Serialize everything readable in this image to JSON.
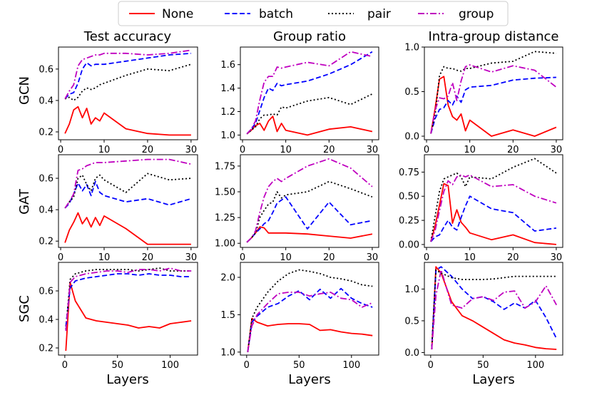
{
  "legend": [
    {
      "name": "None",
      "color": "#ff0000",
      "dash": "solid"
    },
    {
      "name": "batch",
      "color": "#0000ff",
      "dash": "dashed"
    },
    {
      "name": "pair",
      "color": "#000000",
      "dash": "dotted"
    },
    {
      "name": "group",
      "color": "#bf00bf",
      "dash": "dashdot"
    }
  ],
  "columns": [
    "Test accuracy",
    "Group ratio",
    "Intra-group distance"
  ],
  "rows": [
    "GCN",
    "GAT",
    "SGC"
  ],
  "xlabel": "Layers",
  "chart_data": [
    {
      "type": "line",
      "row": "GCN",
      "title": "Test accuracy",
      "xlabel": "",
      "ylabel": "GCN",
      "xlim": [
        -0.5,
        31.5
      ],
      "ylim": [
        0.15,
        0.74
      ],
      "xticks": [
        "0",
        "10",
        "20",
        "30"
      ],
      "yticks": [
        "0.2",
        "0.4",
        "0.6"
      ],
      "x": [
        1,
        2,
        3,
        4,
        5,
        6,
        7,
        8,
        9,
        10,
        15,
        20,
        25,
        30
      ],
      "series": [
        {
          "name": "None",
          "values": [
            0.19,
            0.25,
            0.34,
            0.36,
            0.29,
            0.35,
            0.25,
            0.29,
            0.27,
            0.32,
            0.22,
            0.19,
            0.18,
            0.18
          ]
        },
        {
          "name": "batch",
          "values": [
            0.41,
            0.44,
            0.45,
            0.51,
            0.6,
            0.64,
            0.62,
            0.63,
            0.63,
            0.63,
            0.65,
            0.67,
            0.69,
            0.7
          ]
        },
        {
          "name": "pair",
          "values": [
            0.41,
            0.42,
            0.4,
            0.42,
            0.46,
            0.48,
            0.47,
            0.48,
            0.5,
            0.51,
            0.56,
            0.6,
            0.59,
            0.63
          ]
        },
        {
          "name": "group",
          "values": [
            0.41,
            0.46,
            0.5,
            0.62,
            0.66,
            0.67,
            0.68,
            0.69,
            0.69,
            0.7,
            0.7,
            0.69,
            0.7,
            0.72
          ]
        }
      ]
    },
    {
      "type": "line",
      "row": "GCN",
      "title": "Group ratio",
      "xlabel": "",
      "ylabel": "",
      "xlim": [
        -0.5,
        31.5
      ],
      "ylim": [
        0.96,
        1.75
      ],
      "xticks": [
        "0",
        "10",
        "20",
        "30"
      ],
      "yticks": [
        "1.0",
        "1.2",
        "1.4",
        "1.6"
      ],
      "x": [
        1,
        2,
        3,
        4,
        5,
        6,
        7,
        8,
        9,
        10,
        15,
        20,
        25,
        30
      ],
      "series": [
        {
          "name": "None",
          "values": [
            1.01,
            1.04,
            1.08,
            1.1,
            1.04,
            1.12,
            1.16,
            1.03,
            1.1,
            1.04,
            1.0,
            1.05,
            1.07,
            1.03
          ]
        },
        {
          "name": "batch",
          "values": [
            1.01,
            1.05,
            1.1,
            1.21,
            1.32,
            1.4,
            1.38,
            1.44,
            1.42,
            1.43,
            1.46,
            1.52,
            1.6,
            1.71
          ]
        },
        {
          "name": "pair",
          "values": [
            1.01,
            1.04,
            1.07,
            1.14,
            1.17,
            1.17,
            1.18,
            1.17,
            1.24,
            1.23,
            1.29,
            1.32,
            1.26,
            1.35
          ]
        },
        {
          "name": "group",
          "values": [
            1.01,
            1.05,
            1.12,
            1.3,
            1.45,
            1.5,
            1.5,
            1.58,
            1.57,
            1.58,
            1.62,
            1.59,
            1.71,
            1.67
          ]
        }
      ]
    },
    {
      "type": "line",
      "row": "GCN",
      "title": "Intra-group distance",
      "xlabel": "",
      "ylabel": "",
      "xlim": [
        -0.5,
        31.5
      ],
      "ylim": [
        -0.04,
        1.0
      ],
      "xticks": [
        "0",
        "10",
        "20",
        "30"
      ],
      "yticks": [
        "0.0",
        "0.5",
        "1.0"
      ],
      "x": [
        1,
        2,
        3,
        4,
        5,
        6,
        7,
        8,
        9,
        10,
        15,
        20,
        25,
        30
      ],
      "series": [
        {
          "name": "None",
          "values": [
            0.03,
            0.32,
            0.64,
            0.67,
            0.35,
            0.22,
            0.18,
            0.25,
            0.06,
            0.18,
            0.0,
            0.07,
            0.0,
            0.1
          ]
        },
        {
          "name": "batch",
          "values": [
            0.03,
            0.2,
            0.3,
            0.32,
            0.4,
            0.35,
            0.45,
            0.38,
            0.52,
            0.55,
            0.57,
            0.63,
            0.65,
            0.66
          ]
        },
        {
          "name": "pair",
          "values": [
            0.03,
            0.25,
            0.68,
            0.78,
            0.76,
            0.76,
            0.74,
            0.73,
            0.76,
            0.76,
            0.82,
            0.84,
            0.95,
            0.93
          ]
        },
        {
          "name": "group",
          "values": [
            0.03,
            0.3,
            0.43,
            0.42,
            0.45,
            0.6,
            0.4,
            0.62,
            0.78,
            0.8,
            0.72,
            0.79,
            0.74,
            0.55
          ]
        }
      ]
    },
    {
      "type": "line",
      "row": "GAT",
      "title": "",
      "xlabel": "",
      "ylabel": "GAT",
      "xlim": [
        -0.5,
        31.5
      ],
      "ylim": [
        0.16,
        0.75
      ],
      "xticks": [
        "0",
        "10",
        "20",
        "30"
      ],
      "yticks": [
        "0.2",
        "0.4",
        "0.6"
      ],
      "x": [
        1,
        2,
        3,
        4,
        5,
        6,
        7,
        8,
        9,
        10,
        15,
        20,
        25,
        30
      ],
      "series": [
        {
          "name": "None",
          "values": [
            0.19,
            0.27,
            0.32,
            0.38,
            0.31,
            0.35,
            0.29,
            0.35,
            0.3,
            0.36,
            0.28,
            0.18,
            0.18,
            0.18
          ]
        },
        {
          "name": "batch",
          "values": [
            0.41,
            0.44,
            0.5,
            0.57,
            0.52,
            0.56,
            0.49,
            0.58,
            0.51,
            0.49,
            0.45,
            0.47,
            0.43,
            0.47
          ]
        },
        {
          "name": "pair",
          "values": [
            0.41,
            0.45,
            0.48,
            0.6,
            0.62,
            0.56,
            0.52,
            0.6,
            0.62,
            0.59,
            0.51,
            0.63,
            0.59,
            0.6
          ]
        },
        {
          "name": "group",
          "values": [
            0.41,
            0.45,
            0.5,
            0.65,
            0.66,
            0.68,
            0.69,
            0.7,
            0.7,
            0.7,
            0.71,
            0.72,
            0.72,
            0.69
          ]
        }
      ]
    },
    {
      "type": "line",
      "row": "GAT",
      "title": "",
      "xlabel": "",
      "ylabel": "",
      "xlim": [
        -0.5,
        31.5
      ],
      "ylim": [
        0.96,
        1.86
      ],
      "xticks": [
        "0",
        "10",
        "20",
        "30"
      ],
      "yticks": [
        "1.00",
        "1.25",
        "1.50",
        "1.75"
      ],
      "x": [
        1,
        2,
        3,
        4,
        5,
        6,
        7,
        8,
        9,
        10,
        15,
        20,
        25,
        30
      ],
      "series": [
        {
          "name": "None",
          "values": [
            1.01,
            1.05,
            1.1,
            1.16,
            1.15,
            1.1,
            1.1,
            1.1,
            1.1,
            1.1,
            1.09,
            1.07,
            1.05,
            1.09
          ]
        },
        {
          "name": "batch",
          "values": [
            1.01,
            1.05,
            1.1,
            1.14,
            1.19,
            1.22,
            1.3,
            1.39,
            1.42,
            1.45,
            1.14,
            1.4,
            1.18,
            1.22
          ]
        },
        {
          "name": "pair",
          "values": [
            1.01,
            1.05,
            1.1,
            1.25,
            1.32,
            1.38,
            1.4,
            1.5,
            1.44,
            1.47,
            1.5,
            1.6,
            1.53,
            1.45
          ]
        },
        {
          "name": "group",
          "values": [
            1.01,
            1.05,
            1.12,
            1.3,
            1.45,
            1.55,
            1.6,
            1.63,
            1.6,
            1.63,
            1.75,
            1.82,
            1.73,
            1.55
          ]
        }
      ]
    },
    {
      "type": "line",
      "row": "GAT",
      "title": "",
      "xlabel": "",
      "ylabel": "",
      "xlim": [
        -0.5,
        31.5
      ],
      "ylim": [
        -0.03,
        0.93
      ],
      "xticks": [
        "0",
        "10",
        "20",
        "30"
      ],
      "yticks": [
        "0.00",
        "0.25",
        "0.50",
        "0.75"
      ],
      "x": [
        1,
        2,
        3,
        4,
        5,
        6,
        7,
        8,
        9,
        10,
        15,
        20,
        25,
        30
      ],
      "series": [
        {
          "name": "None",
          "values": [
            0.03,
            0.2,
            0.41,
            0.63,
            0.61,
            0.22,
            0.36,
            0.23,
            0.18,
            0.12,
            0.05,
            0.1,
            0.02,
            0.0
          ]
        },
        {
          "name": "batch",
          "values": [
            0.03,
            0.08,
            0.1,
            0.18,
            0.25,
            0.18,
            0.15,
            0.28,
            0.4,
            0.5,
            0.37,
            0.33,
            0.14,
            0.17
          ]
        },
        {
          "name": "pair",
          "values": [
            0.03,
            0.3,
            0.55,
            0.68,
            0.7,
            0.72,
            0.74,
            0.7,
            0.6,
            0.7,
            0.68,
            0.8,
            0.89,
            0.74
          ]
        },
        {
          "name": "group",
          "values": [
            0.03,
            0.15,
            0.35,
            0.55,
            0.66,
            0.62,
            0.7,
            0.72,
            0.7,
            0.72,
            0.6,
            0.62,
            0.5,
            0.43
          ]
        }
      ]
    },
    {
      "type": "line",
      "row": "SGC",
      "title": "",
      "xlabel": "Layers",
      "ylabel": "SGC",
      "xlim": [
        -6,
        126
      ],
      "ylim": [
        0.15,
        0.8
      ],
      "xticks": [
        "0",
        "50",
        "100"
      ],
      "yticks": [
        "0.2",
        "0.4",
        "0.6"
      ],
      "x": [
        1,
        5,
        10,
        20,
        30,
        40,
        50,
        60,
        70,
        80,
        90,
        100,
        110,
        120
      ],
      "series": [
        {
          "name": "None",
          "values": [
            0.18,
            0.66,
            0.53,
            0.41,
            0.39,
            0.38,
            0.37,
            0.36,
            0.34,
            0.35,
            0.34,
            0.37,
            0.38,
            0.39
          ]
        },
        {
          "name": "batch",
          "values": [
            0.35,
            0.62,
            0.67,
            0.69,
            0.7,
            0.71,
            0.72,
            0.72,
            0.71,
            0.72,
            0.71,
            0.71,
            0.7,
            0.7
          ]
        },
        {
          "name": "pair",
          "values": [
            0.33,
            0.68,
            0.72,
            0.74,
            0.75,
            0.75,
            0.75,
            0.75,
            0.74,
            0.75,
            0.76,
            0.74,
            0.74,
            0.74
          ]
        },
        {
          "name": "group",
          "values": [
            0.32,
            0.66,
            0.7,
            0.72,
            0.73,
            0.74,
            0.74,
            0.73,
            0.75,
            0.75,
            0.74,
            0.76,
            0.74,
            0.74
          ]
        }
      ]
    },
    {
      "type": "line",
      "row": "SGC",
      "title": "",
      "xlabel": "Layers",
      "ylabel": "",
      "xlim": [
        -6,
        126
      ],
      "ylim": [
        0.96,
        2.2
      ],
      "xticks": [
        "0",
        "50",
        "100"
      ],
      "yticks": [
        "1.0",
        "1.5",
        "2.0"
      ],
      "x": [
        1,
        5,
        10,
        20,
        30,
        40,
        50,
        60,
        70,
        80,
        90,
        100,
        110,
        120
      ],
      "series": [
        {
          "name": "None",
          "values": [
            1.0,
            1.45,
            1.4,
            1.35,
            1.37,
            1.38,
            1.38,
            1.37,
            1.29,
            1.3,
            1.27,
            1.25,
            1.24,
            1.22
          ]
        },
        {
          "name": "batch",
          "values": [
            1.0,
            1.4,
            1.48,
            1.6,
            1.65,
            1.75,
            1.82,
            1.7,
            1.84,
            1.72,
            1.85,
            1.72,
            1.65,
            1.6
          ]
        },
        {
          "name": "pair",
          "values": [
            1.0,
            1.45,
            1.6,
            1.8,
            1.95,
            2.05,
            2.1,
            2.08,
            2.05,
            2.0,
            1.98,
            1.95,
            1.9,
            1.88
          ]
        },
        {
          "name": "group",
          "values": [
            1.0,
            1.35,
            1.5,
            1.65,
            1.78,
            1.8,
            1.8,
            1.75,
            1.78,
            1.8,
            1.72,
            1.7,
            1.6,
            1.66
          ]
        }
      ]
    },
    {
      "type": "line",
      "row": "SGC",
      "title": "",
      "xlabel": "Layers",
      "ylabel": "",
      "xlim": [
        -6,
        126
      ],
      "ylim": [
        -0.04,
        1.42
      ],
      "xticks": [
        "0",
        "50",
        "100"
      ],
      "yticks": [
        "0.0",
        "0.5",
        "1.0"
      ],
      "x": [
        1,
        5,
        10,
        20,
        30,
        40,
        50,
        60,
        70,
        80,
        90,
        100,
        110,
        120
      ],
      "series": [
        {
          "name": "None",
          "values": [
            0.05,
            1.35,
            1.25,
            0.8,
            0.58,
            0.5,
            0.4,
            0.3,
            0.2,
            0.15,
            0.12,
            0.08,
            0.06,
            0.05
          ]
        },
        {
          "name": "batch",
          "values": [
            0.05,
            1.3,
            1.35,
            1.2,
            1.0,
            0.85,
            0.88,
            0.8,
            0.68,
            0.78,
            0.7,
            0.82,
            0.55,
            0.22
          ]
        },
        {
          "name": "pair",
          "values": [
            0.05,
            1.3,
            1.25,
            1.18,
            1.15,
            1.15,
            1.15,
            1.16,
            1.18,
            1.2,
            1.2,
            1.2,
            1.2,
            1.2
          ]
        },
        {
          "name": "group",
          "values": [
            0.05,
            0.9,
            1.3,
            0.75,
            0.7,
            0.85,
            0.88,
            0.82,
            0.95,
            0.97,
            0.7,
            0.8,
            1.05,
            0.75
          ]
        }
      ]
    }
  ]
}
